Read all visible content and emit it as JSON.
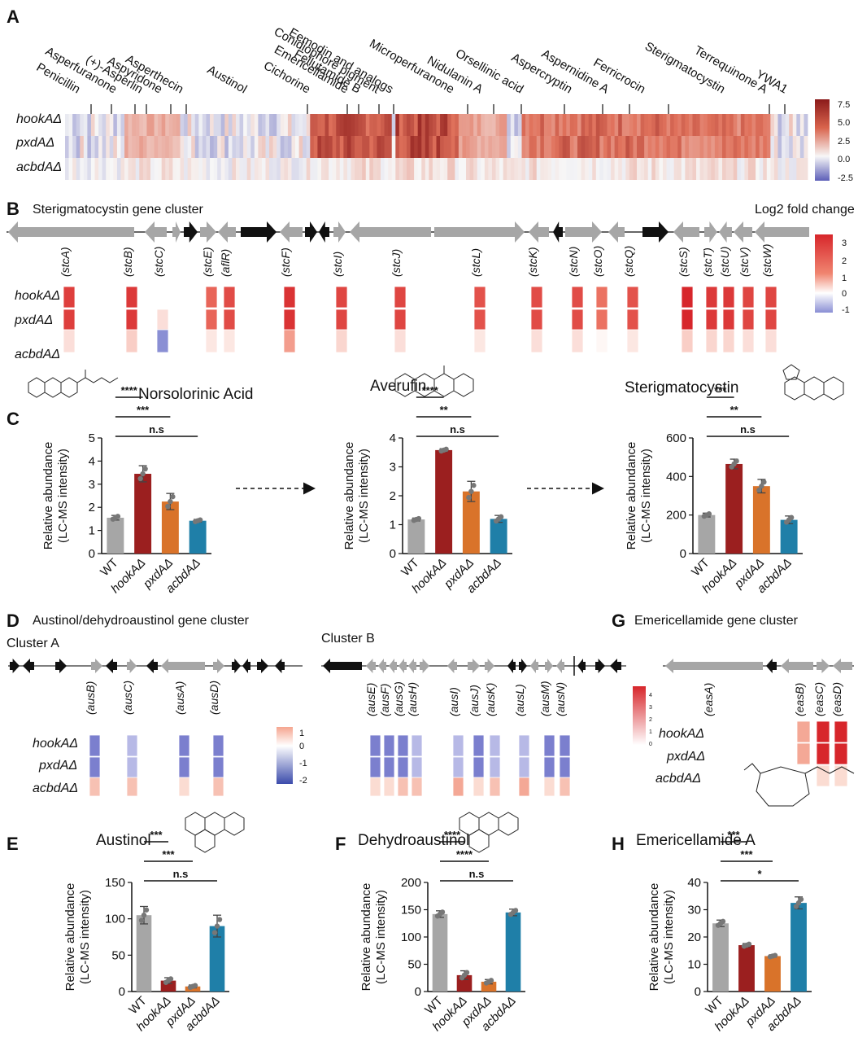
{
  "panels": {
    "A": "A",
    "B": "B",
    "C": "C",
    "D": "D",
    "E": "E",
    "F": "F",
    "G": "G",
    "H": "H"
  },
  "panelA": {
    "clusters": [
      "Penicillin",
      "Asperfuranone",
      "(+)-Asperlin",
      "Aspyridone",
      "Asperthecin",
      "Austinol",
      "Cichorine",
      "Emericellamide",
      "Fellutamide B",
      "Conidiophore pigment",
      "Eemodin and analogs",
      "Microperfuranone",
      "Nidulanin A",
      "Orsellinic acid",
      "Aspercryptin",
      "Aspernidine A",
      "Ferricrocin",
      "Sterigmatocystin",
      "Terrequinone A",
      "YWA1"
    ],
    "rows": [
      "hookAΔ",
      "pxdAΔ",
      "acbdAΔ"
    ],
    "colorbar_ticks": [
      "7.5",
      "5.0",
      "2.5",
      "0.0",
      "-2.5"
    ],
    "colors": {
      "low": "#5d5fb8",
      "mid": "#f7f7f7",
      "high": "#8b1a1a"
    }
  },
  "panelB": {
    "title": "Sterigmatocystin gene cluster",
    "legend_title": "Log2 fold change",
    "genes": [
      "(stcA)",
      "(stcB)",
      "(stcC)",
      "(stcE)",
      "(aflR)",
      "(stcF)",
      "(stcI)",
      "(stcJ)",
      "(stcL)",
      "(stcK)",
      "(stcN)",
      "(stcO)",
      "(stcQ)",
      "(stcS)",
      "(stcT)",
      "(stcU)",
      "(stcV)",
      "(stcW)"
    ],
    "rows": [
      "hookAΔ",
      "pxdAΔ",
      "acbdAΔ"
    ],
    "colorbar_ticks": [
      "3",
      "2",
      "1",
      "0",
      "-1"
    ],
    "values": [
      [
        2.6,
        2.6,
        0.4
      ],
      [
        2.7,
        2.7,
        0.6
      ],
      [
        0,
        0.4,
        -1.2
      ],
      [
        2.0,
        2.0,
        0.3
      ],
      [
        2.4,
        2.4,
        0.3
      ],
      [
        2.8,
        2.8,
        1.2
      ],
      [
        2.5,
        2.5,
        0.5
      ],
      [
        2.5,
        2.5,
        0.4
      ],
      [
        2.3,
        2.3,
        0.3
      ],
      [
        2.4,
        2.4,
        0.4
      ],
      [
        2.4,
        2.4,
        0.4
      ],
      [
        1.8,
        1.8,
        0.1
      ],
      [
        2.3,
        2.3,
        0.3
      ],
      [
        3.0,
        3.0,
        0.6
      ],
      [
        2.7,
        2.7,
        0.5
      ],
      [
        2.7,
        2.7,
        0.5
      ],
      [
        2.5,
        2.5,
        0.4
      ],
      [
        2.5,
        2.5,
        0.4
      ]
    ]
  },
  "panelC": {
    "compound_titles": [
      "Norsolorinic Acid",
      "Averufin",
      "Sterigmatocystin"
    ],
    "ylabel_1": "Relative abundance",
    "ylabel_2": "(LC-MS intensity)",
    "categories": [
      "WT",
      "hookAΔ",
      "pxdAΔ",
      "acbdAΔ"
    ]
  },
  "panelD": {
    "title": "Austinol/dehydroaustinol gene cluster",
    "clusterA": "Cluster A",
    "clusterB": "Cluster B",
    "genesA": [
      "(ausB)",
      "(ausC)",
      "(ausA)",
      "(ausD)"
    ],
    "genesB": [
      "(ausE)",
      "(ausF)",
      "(ausG)",
      "(ausH)",
      "(ausI)",
      "(ausJ)",
      "(ausK)",
      "(ausL)",
      "(ausM)",
      "(ausN)"
    ],
    "rows": [
      "hookAΔ",
      "pxdAΔ",
      "acbdAΔ"
    ],
    "colorbar_ticks": [
      "1",
      "0",
      "-1",
      "-2"
    ]
  },
  "panelG": {
    "title": "Emericellamide gene cluster",
    "genes": [
      "(easA)",
      "(easB)",
      "(easC)",
      "(easD)"
    ],
    "rows": [
      "hookAΔ",
      "pxdAΔ",
      "acbdAΔ"
    ],
    "colorbar_ticks": [
      "4",
      "3",
      "2",
      "1",
      "0"
    ]
  },
  "panelEFH": {
    "titles": [
      "Austinol",
      "Dehydroaustinol",
      "Emericellamide A"
    ]
  },
  "chart_data": [
    {
      "type": "bar",
      "title": "Norsolorinic Acid",
      "categories": [
        "WT",
        "hookAΔ",
        "pxdAΔ",
        "acbdAΔ"
      ],
      "values": [
        1.55,
        3.45,
        2.25,
        1.42
      ],
      "errors": [
        0.1,
        0.35,
        0.35,
        0.06
      ],
      "ylabel": "Relative abundance (LC-MS intensity)",
      "ylim": [
        0,
        5
      ],
      "yticks": [
        "0",
        "1",
        "2",
        "3",
        "4",
        "5"
      ],
      "significance": [
        {
          "pair": "WT-hookAΔ",
          "label": "****"
        },
        {
          "pair": "WT-pxdAΔ",
          "label": "***"
        },
        {
          "pair": "WT-acbdAΔ",
          "label": "n.s"
        }
      ]
    },
    {
      "type": "bar",
      "title": "Averufin",
      "categories": [
        "WT",
        "hookAΔ",
        "pxdAΔ",
        "acbdAΔ"
      ],
      "values": [
        1.18,
        3.58,
        2.15,
        1.2
      ],
      "errors": [
        0.05,
        0.05,
        0.35,
        0.12
      ],
      "ylabel": "Relative abundance (LC-MS intensity)",
      "ylim": [
        0,
        4
      ],
      "yticks": [
        "0",
        "1",
        "2",
        "3",
        "4"
      ],
      "significance": [
        {
          "pair": "WT-hookAΔ",
          "label": "****"
        },
        {
          "pair": "WT-pxdAΔ",
          "label": "**"
        },
        {
          "pair": "WT-acbdAΔ",
          "label": "n.s"
        }
      ]
    },
    {
      "type": "bar",
      "title": "Sterigmatocystin",
      "categories": [
        "WT",
        "hookAΔ",
        "pxdAΔ",
        "acbdAΔ"
      ],
      "values": [
        200,
        465,
        350,
        175
      ],
      "errors": [
        10,
        25,
        35,
        20
      ],
      "ylabel": "Relative abundance (LC-MS intensity)",
      "ylim": [
        0,
        600
      ],
      "yticks": [
        "0",
        "200",
        "400",
        "600"
      ],
      "significance": [
        {
          "pair": "WT-hookAΔ",
          "label": "***"
        },
        {
          "pair": "WT-pxdAΔ",
          "label": "**"
        },
        {
          "pair": "WT-acbdAΔ",
          "label": "n.s"
        }
      ]
    },
    {
      "type": "bar",
      "title": "Austinol",
      "categories": [
        "WT",
        "hookAΔ",
        "pxdAΔ",
        "acbdAΔ"
      ],
      "values": [
        105,
        15,
        7,
        90
      ],
      "errors": [
        12,
        4,
        2,
        15
      ],
      "ylabel": "Relative abundance (LC-MS intensity)",
      "ylim": [
        0,
        150
      ],
      "yticks": [
        "0",
        "50",
        "100",
        "150"
      ],
      "significance": [
        {
          "pair": "WT-hookAΔ",
          "label": "***"
        },
        {
          "pair": "WT-pxdAΔ",
          "label": "***"
        },
        {
          "pair": "WT-acbdAΔ",
          "label": "n.s"
        }
      ]
    },
    {
      "type": "bar",
      "title": "Dehydroaustinol",
      "categories": [
        "WT",
        "hookAΔ",
        "pxdAΔ",
        "acbdAΔ"
      ],
      "values": [
        142,
        30,
        18,
        145
      ],
      "errors": [
        6,
        8,
        4,
        6
      ],
      "ylabel": "Relative abundance (LC-MS intensity)",
      "ylim": [
        0,
        200
      ],
      "yticks": [
        "0",
        "50",
        "100",
        "150",
        "200"
      ],
      "significance": [
        {
          "pair": "WT-hookAΔ",
          "label": "****"
        },
        {
          "pair": "WT-pxdAΔ",
          "label": "****"
        },
        {
          "pair": "WT-acbdAΔ",
          "label": "n.s"
        }
      ]
    },
    {
      "type": "bar",
      "title": "Emericellamide A",
      "categories": [
        "WT",
        "hookAΔ",
        "pxdAΔ",
        "acbdAΔ"
      ],
      "values": [
        25,
        17,
        13,
        32.5
      ],
      "errors": [
        1.2,
        0.6,
        0.4,
        2.2
      ],
      "ylabel": "Relative abundance (LC-MS intensity)",
      "ylim": [
        0,
        40
      ],
      "yticks": [
        "0",
        "10",
        "20",
        "30",
        "40"
      ],
      "significance": [
        {
          "pair": "WT-hookAΔ",
          "label": "***"
        },
        {
          "pair": "WT-pxdAΔ",
          "label": "***"
        },
        {
          "pair": "WT-acbdAΔ",
          "label": "*"
        }
      ]
    }
  ]
}
